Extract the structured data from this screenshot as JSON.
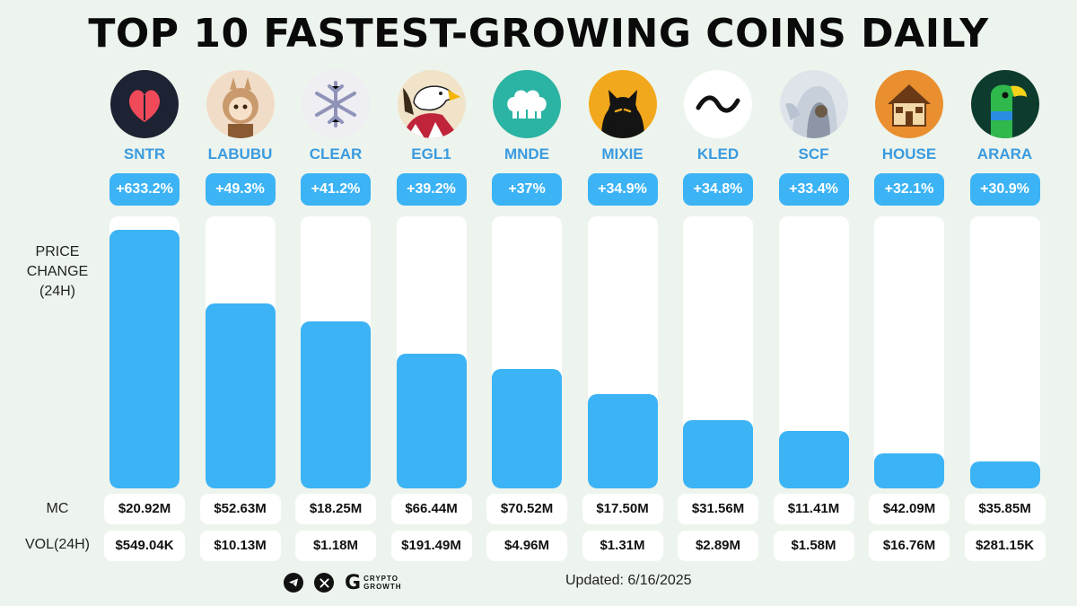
{
  "title": "TOP 10 FASTEST-GROWING COINS DAILY",
  "labels": {
    "price_change": [
      "PRICE",
      "CHANGE",
      "(24H)"
    ],
    "mc": "MC",
    "vol": "VOL(24H)"
  },
  "footer": {
    "updated": "Updated: 6/16/2025",
    "brand_line1": "CRYPTO",
    "brand_line2": "GROWTH",
    "icons": [
      "telegram-icon",
      "x-icon"
    ]
  },
  "colors": {
    "accent": "#3cb3f5",
    "symbol": "#3a9be0",
    "background": "#edf4ed"
  },
  "chart_data": {
    "type": "bar",
    "title": "TOP 10 FASTEST-GROWING COINS DAILY",
    "ylabel": "PRICE CHANGE (24H)",
    "categories": [
      "SNTR",
      "LABUBU",
      "CLEAR",
      "EGL1",
      "MNDE",
      "MIXIE",
      "KLED",
      "SCF",
      "HOUSE",
      "ARARA"
    ],
    "series": [
      {
        "values": [
          633.2,
          49.3,
          41.2,
          39.2,
          37,
          34.9,
          34.8,
          33.4,
          32.1,
          30.9
        ],
        "labels": [
          "+633.2%",
          "+49.3%",
          "+41.2%",
          "+39.2%",
          "+37%",
          "+34.9%",
          "+34.8%",
          "+33.4%",
          "+32.1%",
          "+30.9%"
        ]
      }
    ],
    "bar_fill_fraction": [
      0.95,
      0.68,
      0.615,
      0.495,
      0.44,
      0.345,
      0.25,
      0.21,
      0.128,
      0.1
    ],
    "mc": [
      "$20.92M",
      "$52.63M",
      "$18.25M",
      "$66.44M",
      "$70.52M",
      "$17.50M",
      "$31.56M",
      "$11.41M",
      "$42.09M",
      "$35.85M"
    ],
    "vol_24h": [
      "$549.04K",
      "$10.13M",
      "$1.18M",
      "$191.49M",
      "$4.96M",
      "$1.31M",
      "$2.89M",
      "$1.58M",
      "$16.76M",
      "$281.15K"
    ],
    "logos": [
      "sntr-heart-icon",
      "labubu-doll-icon",
      "clear-snowflake-icon",
      "egl1-eagle-icon",
      "mnde-chef-hat-icon",
      "mixie-cat-icon",
      "kled-wave-icon",
      "scf-hooded-figure-icon",
      "house-icon",
      "arara-parrot-icon"
    ]
  }
}
